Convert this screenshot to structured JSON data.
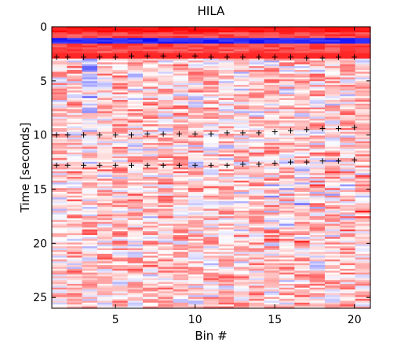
{
  "chart_data": {
    "type": "heatmap",
    "title": "HILA",
    "xlabel": "Bin #",
    "ylabel": "Time [seconds]",
    "xlim": [
      1,
      21
    ],
    "ylim": [
      26,
      0
    ],
    "y_reversed": true,
    "xticks": [
      5,
      10,
      15,
      20
    ],
    "yticks": [
      0,
      5,
      10,
      15,
      20,
      25
    ],
    "n_bins": 21,
    "colormap": {
      "low": "#0000ff",
      "mid": "#ffffff",
      "high": "#ff0000"
    },
    "grid": false,
    "legend": "none",
    "series": [
      {
        "marker": "+",
        "x": [
          1.3,
          2,
          3,
          4,
          5,
          6,
          7,
          8,
          9,
          10,
          11,
          12,
          13,
          14,
          15,
          16,
          17,
          18,
          19,
          20
        ],
        "y": [
          2.8,
          2.8,
          2.8,
          2.8,
          2.8,
          2.7,
          2.7,
          2.7,
          2.7,
          2.7,
          2.8,
          2.8,
          2.8,
          2.8,
          2.8,
          2.8,
          2.9,
          2.9,
          2.8,
          2.8
        ]
      },
      {
        "marker": "+",
        "x": [
          1.3,
          2,
          3,
          4,
          5,
          6,
          7,
          8,
          9,
          10,
          11,
          12,
          13,
          14,
          15,
          16,
          17,
          18,
          19,
          20
        ],
        "y": [
          10.0,
          10.0,
          10.0,
          10.0,
          10.0,
          10.0,
          9.9,
          9.9,
          9.9,
          9.9,
          9.9,
          9.8,
          9.8,
          9.8,
          9.7,
          9.6,
          9.5,
          9.4,
          9.4,
          9.3
        ]
      },
      {
        "marker": "+",
        "x": [
          1.3,
          2,
          3,
          4,
          5,
          6,
          7,
          8,
          9,
          10,
          11,
          12,
          13,
          14,
          15,
          16,
          17,
          18,
          19,
          20
        ],
        "y": [
          12.8,
          12.8,
          12.8,
          12.8,
          12.8,
          12.8,
          12.8,
          12.8,
          12.8,
          12.8,
          12.8,
          12.8,
          12.7,
          12.7,
          12.6,
          12.5,
          12.5,
          12.4,
          12.4,
          12.3
        ]
      }
    ]
  }
}
